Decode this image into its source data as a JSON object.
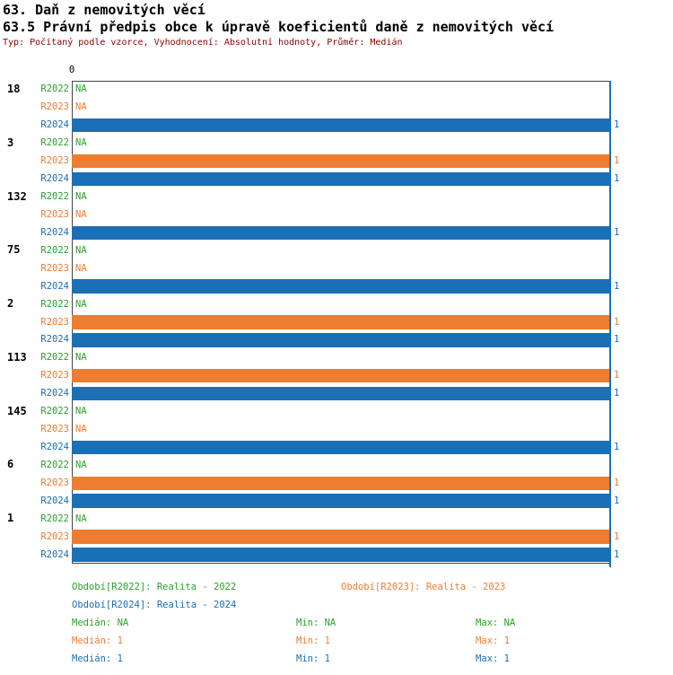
{
  "chart_data": {
    "type": "bar",
    "orientation": "horizontal",
    "title": "63. Daň z nemovitých věcí",
    "subtitle": "63.5 Právní předpis obce k úpravě koeficientů daně z nemovitých věcí",
    "meta": "Typ: Počítaný podle vzorce, Vyhodnocení: Absolutní hodnoty, Průměr: Medián",
    "xlim": [
      0,
      1
    ],
    "x_axis_ticks": [
      "0"
    ],
    "na_label": "NA",
    "grid": false,
    "legend_position": "bottom",
    "series": [
      {
        "name": "R2022",
        "color": "#2CA02C",
        "legend": "Období[R2022]: Realita - 2022",
        "stats": {
          "median": "NA",
          "min": "NA",
          "max": "NA"
        }
      },
      {
        "name": "R2023",
        "color": "#ED7D31",
        "legend": "Období[R2023]: Realita - 2023",
        "stats": {
          "median": "1",
          "min": "1",
          "max": "1"
        }
      },
      {
        "name": "R2024",
        "color": "#1B6FB4",
        "legend": "Období[R2024]: Realita - 2024",
        "stats": {
          "median": "1",
          "min": "1",
          "max": "1"
        }
      }
    ],
    "stats_labels": {
      "median": "Medián",
      "min": "Min",
      "max": "Max"
    },
    "median_line": {
      "value": 1,
      "series": "R2024"
    },
    "groups": [
      {
        "label": "18",
        "values": [
          "NA",
          "NA",
          1
        ]
      },
      {
        "label": "3",
        "values": [
          "NA",
          1,
          1
        ]
      },
      {
        "label": "132",
        "values": [
          "NA",
          "NA",
          1
        ]
      },
      {
        "label": "75",
        "values": [
          "NA",
          "NA",
          1
        ]
      },
      {
        "label": "2",
        "values": [
          "NA",
          1,
          1
        ]
      },
      {
        "label": "113",
        "values": [
          "NA",
          1,
          1
        ]
      },
      {
        "label": "145",
        "values": [
          "NA",
          "NA",
          1
        ]
      },
      {
        "label": "6",
        "values": [
          "NA",
          1,
          1
        ]
      },
      {
        "label": "1",
        "values": [
          "NA",
          1,
          1
        ]
      }
    ]
  }
}
